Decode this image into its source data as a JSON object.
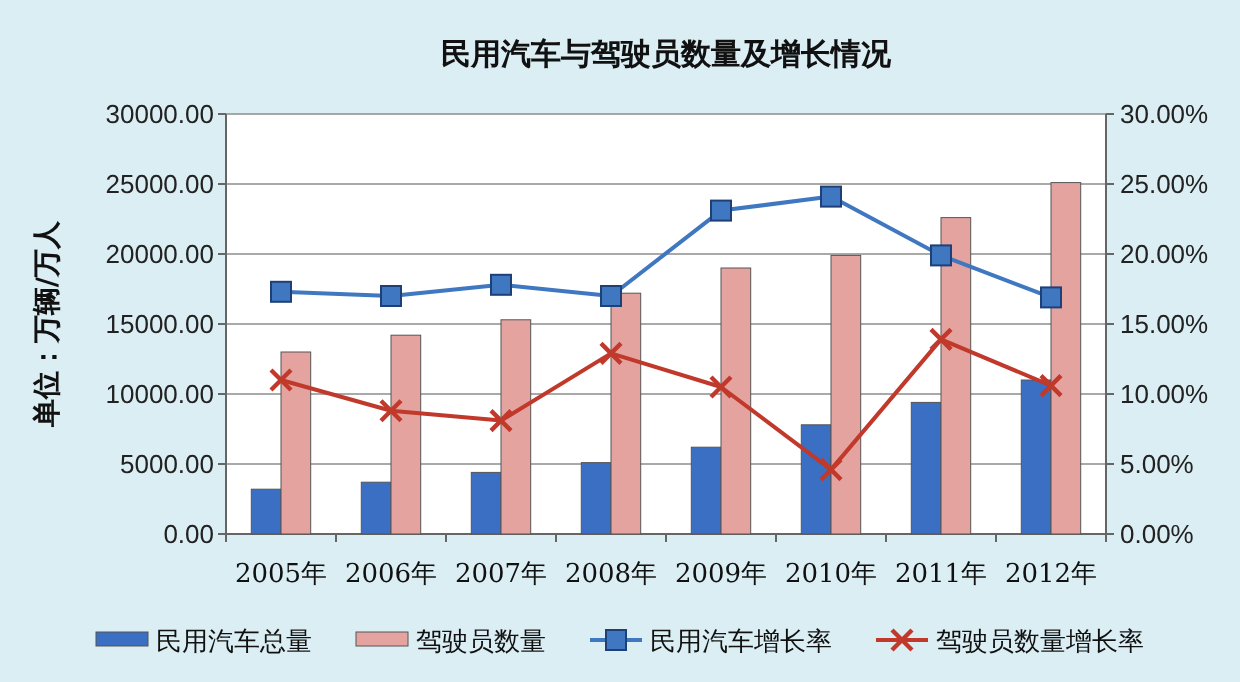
{
  "chart_data": {
    "type": "bar",
    "title": "民用汽车与驾驶员数量及增长情况",
    "ylabel": "单位：万辆/万人",
    "categories": [
      "2005年",
      "2006年",
      "2007年",
      "2008年",
      "2009年",
      "2010年",
      "2011年",
      "2012年"
    ],
    "series": [
      {
        "name": "民用汽车总量",
        "color": "#3a6fc4",
        "values": [
          3200,
          3700,
          4400,
          5100,
          6200,
          7800,
          9400,
          11000
        ]
      },
      {
        "name": "驾驶员数量",
        "color": "#e5a3a0",
        "values": [
          13000,
          14200,
          15300,
          17200,
          19000,
          19900,
          22600,
          25100
        ]
      },
      {
        "name": "民用汽车增长率",
        "type": "line",
        "axis": "y2",
        "marker": "square",
        "color": "#3f78c0",
        "values": [
          17.3,
          17.0,
          17.8,
          17.0,
          23.1,
          24.1,
          19.9,
          16.9
        ]
      },
      {
        "name": "驾驶员数量增长率",
        "type": "line",
        "axis": "y2",
        "marker": "cross",
        "color": "#c0392b",
        "values": [
          11.0,
          8.8,
          8.1,
          12.9,
          10.5,
          4.6,
          13.9,
          10.6
        ]
      }
    ],
    "ylim": [
      0,
      30000
    ],
    "yticks": [
      {
        "value": 0,
        "label": "0.00"
      },
      {
        "value": 5000,
        "label": "5000.00"
      },
      {
        "value": 10000,
        "label": "10000.00"
      },
      {
        "value": 15000,
        "label": "15000.00"
      },
      {
        "value": 20000,
        "label": "20000.00"
      },
      {
        "value": 25000,
        "label": "25000.00"
      },
      {
        "value": 30000,
        "label": "30000.00"
      }
    ],
    "y2lim": [
      0,
      30
    ],
    "y2ticks": [
      {
        "value": 0,
        "label": "0.00%"
      },
      {
        "value": 5,
        "label": "5.00%"
      },
      {
        "value": 10,
        "label": "10.00%"
      },
      {
        "value": 15,
        "label": "15.00%"
      },
      {
        "value": 20,
        "label": "20.00%"
      },
      {
        "value": 25,
        "label": "25.00%"
      },
      {
        "value": 30,
        "label": "30.00%"
      }
    ],
    "grid": "y",
    "legend": "bottom"
  }
}
